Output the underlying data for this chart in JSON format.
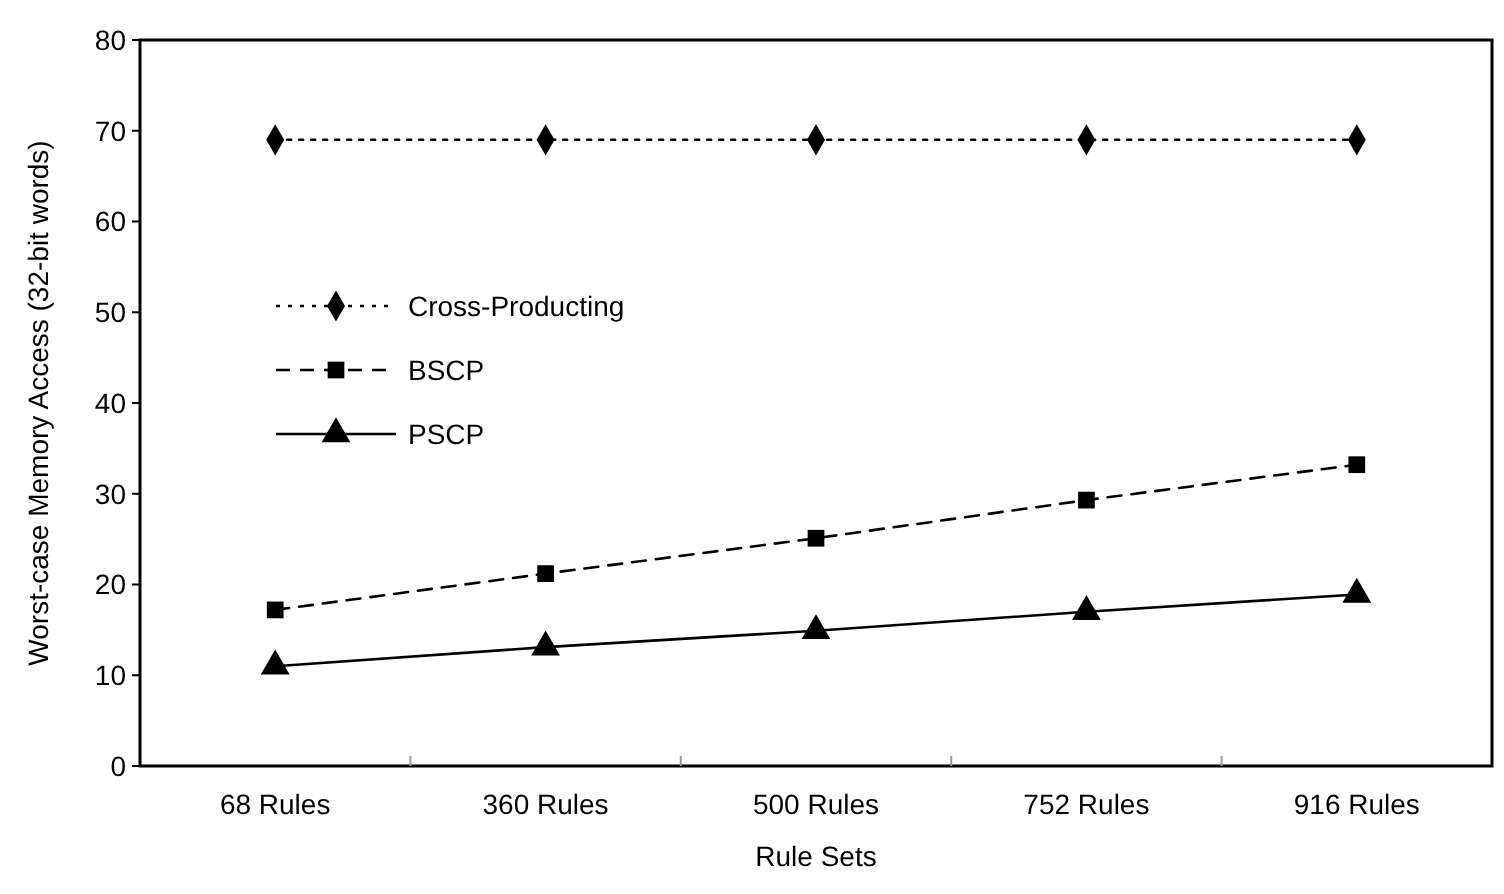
{
  "chart_data": {
    "type": "line",
    "xlabel": "Rule Sets",
    "ylabel": "Worst-case Memory Access (32-bit words)",
    "categories": [
      "68 Rules",
      "360 Rules",
      "500 Rules",
      "752 Rules",
      "916 Rules"
    ],
    "ylim": [
      0,
      80
    ],
    "yticks": [
      0,
      10,
      20,
      30,
      40,
      50,
      60,
      70,
      80
    ],
    "grid": false,
    "legend": "left",
    "series": [
      {
        "name": "Cross-Producting",
        "color": "#000000",
        "values": [
          69,
          69,
          69,
          69,
          69
        ],
        "marker": "diamond",
        "line_style": "dotted"
      },
      {
        "name": "BSCP",
        "color": "#000000",
        "values": [
          17.2,
          21.2,
          25.1,
          29.3,
          33.2
        ],
        "marker": "square",
        "line_style": "dashed"
      },
      {
        "name": "PSCP",
        "color": "#000000",
        "values": [
          11,
          13.1,
          14.9,
          17,
          18.9
        ],
        "marker": "triangle",
        "line_style": "solid"
      }
    ]
  }
}
